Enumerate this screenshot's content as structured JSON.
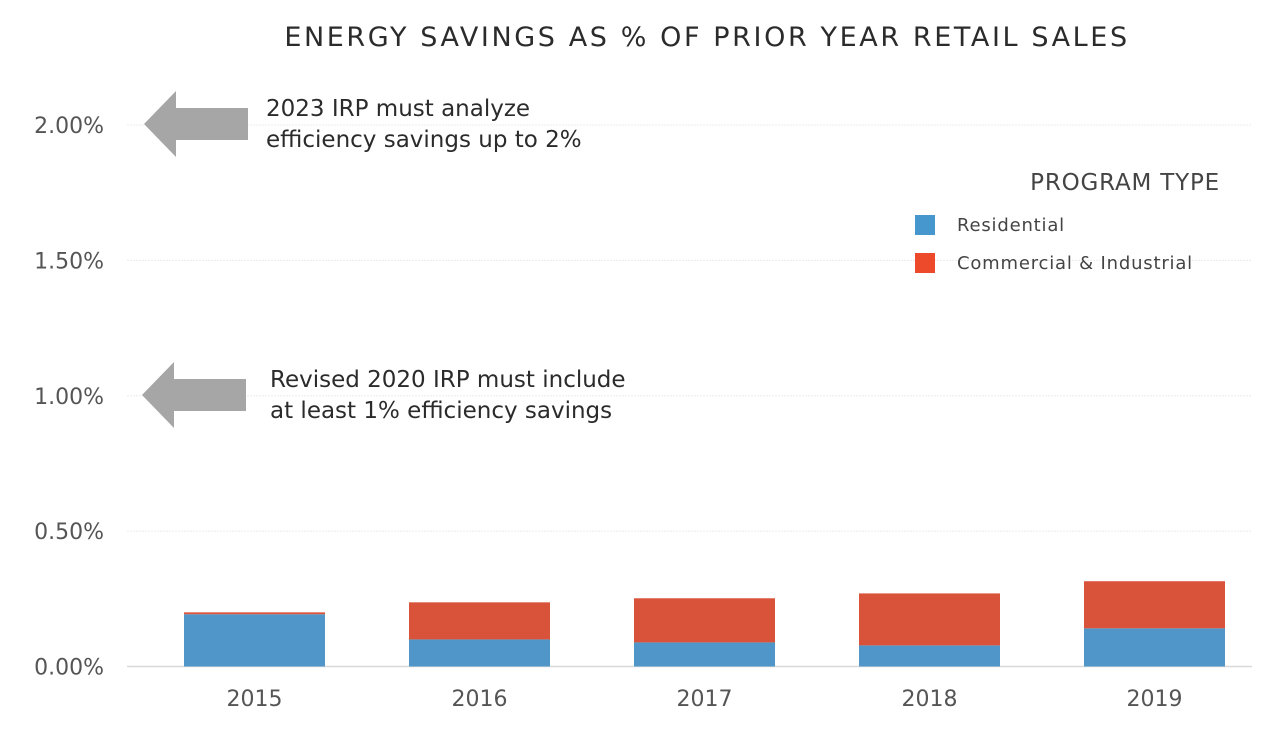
{
  "chart_data": {
    "type": "bar",
    "stacked": true,
    "title": "ENERGY SAVINGS AS % OF PRIOR YEAR RETAIL SALES",
    "xlabel": "",
    "ylabel": "",
    "categories": [
      "2015",
      "2016",
      "2017",
      "2018",
      "2019"
    ],
    "series": [
      {
        "name": "Residential",
        "color": "#5096c8",
        "values": [
          0.193,
          0.1,
          0.089,
          0.078,
          0.141
        ]
      },
      {
        "name": "Commercial & Industrial",
        "color": "#d9533b",
        "values": [
          0.007,
          0.137,
          0.163,
          0.192,
          0.174
        ]
      }
    ],
    "ylim": [
      0,
      2.0
    ],
    "yticks": [
      0,
      0.5,
      1.0,
      1.5,
      2.0
    ],
    "ytick_labels": [
      "0.00%",
      "0.50%",
      "1.00%",
      "1.50%",
      "2.00%"
    ],
    "grid": true,
    "legend": {
      "title": "PROGRAM TYPE",
      "placement": "right",
      "items": [
        {
          "label": "Residential",
          "color": "#4797cf"
        },
        {
          "label": "Commercial & Industrial",
          "color": "#ec4a2a"
        }
      ]
    },
    "annotations": [
      {
        "y_value": 2.0,
        "lines": [
          "2023 IRP must analyze",
          "efficiency savings up to 2%"
        ],
        "icon": "left-arrow-icon"
      },
      {
        "y_value": 1.0,
        "lines": [
          "Revised 2020 IRP must include",
          "at least 1% efficiency savings"
        ],
        "icon": "left-arrow-icon"
      }
    ]
  }
}
